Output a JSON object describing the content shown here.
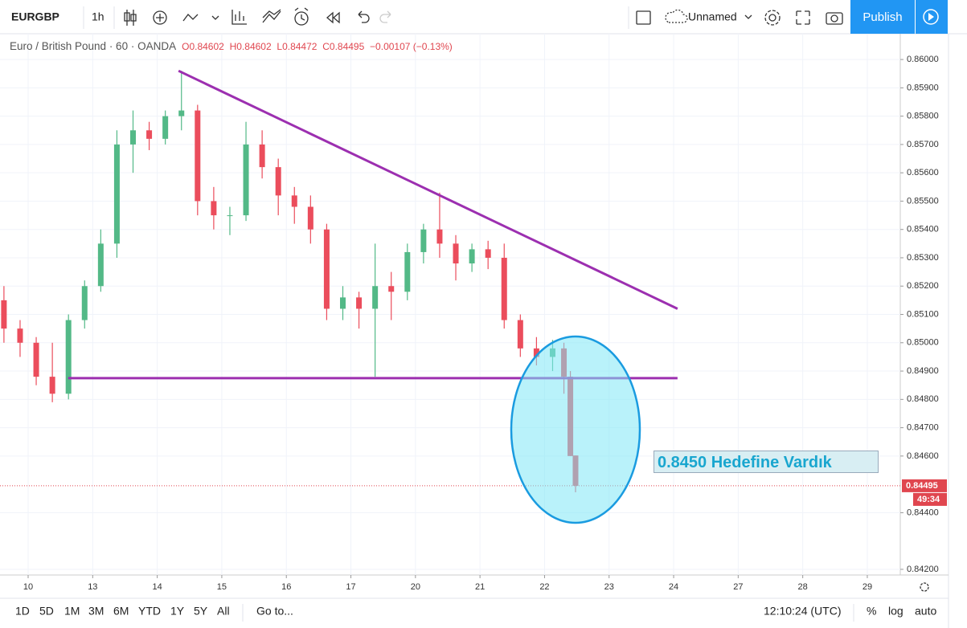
{
  "toolbar": {
    "symbol": "EURGBP",
    "interval": "1h",
    "layout": "Unnamed",
    "publish": "Publish"
  },
  "legend": {
    "title": "Euro / British Pound · 60 · OANDA",
    "open": "O0.84602",
    "high": "H0.84602",
    "low": "L0.84472",
    "close": "C0.84495",
    "change": "−0.00107 (−0.13%)"
  },
  "bottom_bar": {
    "ranges": [
      "1D",
      "5D",
      "1M",
      "3M",
      "6M",
      "YTD",
      "1Y",
      "5Y",
      "All"
    ],
    "goto": "Go to...",
    "clock": "12:10:24 (UTC)",
    "percent": "%",
    "log": "log",
    "auto": "auto"
  },
  "chart_data": {
    "type": "candlestick",
    "x": [
      -0.375,
      -0.125,
      0.125,
      0.375,
      0.625,
      0.875,
      1.125,
      1.375,
      1.625,
      1.875,
      2.125,
      2.375,
      2.625,
      2.875,
      3.125,
      3.375,
      3.625,
      3.875,
      4.125,
      4.375,
      4.625,
      4.875,
      5.125,
      5.375,
      5.625,
      5.875,
      6.125,
      6.375,
      6.625,
      6.875,
      7.125,
      7.375,
      7.625,
      7.875,
      8.125,
      8.3,
      8.4,
      8.48
    ],
    "open": [
      0.8515,
      0.8505,
      0.85,
      0.8488,
      0.8482,
      0.8508,
      0.852,
      0.8535,
      0.857,
      0.8575,
      0.8572,
      0.858,
      0.8582,
      0.855,
      0.8545,
      0.8545,
      0.857,
      0.8562,
      0.8552,
      0.8548,
      0.854,
      0.8512,
      0.8516,
      0.8512,
      0.852,
      0.8518,
      0.8532,
      0.854,
      0.8535,
      0.8528,
      0.8533,
      0.853,
      0.8508,
      0.8498,
      0.8495,
      0.8498,
      0.8488,
      0.84602
    ],
    "high": [
      0.852,
      0.8508,
      0.8502,
      0.85,
      0.851,
      0.8522,
      0.854,
      0.8575,
      0.8582,
      0.8578,
      0.8582,
      0.8596,
      0.8584,
      0.8555,
      0.8548,
      0.8578,
      0.8575,
      0.8565,
      0.8555,
      0.8552,
      0.8542,
      0.852,
      0.8518,
      0.8535,
      0.8525,
      0.8535,
      0.8542,
      0.8553,
      0.8538,
      0.8535,
      0.8536,
      0.8535,
      0.851,
      0.8502,
      0.8501,
      0.85,
      0.849,
      0.84602
    ],
    "low": [
      0.85,
      0.8495,
      0.8485,
      0.8479,
      0.848,
      0.8505,
      0.8518,
      0.853,
      0.856,
      0.8568,
      0.857,
      0.8575,
      0.8545,
      0.854,
      0.8538,
      0.8543,
      0.8558,
      0.8545,
      0.8542,
      0.8535,
      0.8508,
      0.8508,
      0.8505,
      0.8488,
      0.8508,
      0.8515,
      0.8528,
      0.853,
      0.8522,
      0.8525,
      0.8526,
      0.8505,
      0.8495,
      0.8492,
      0.849,
      0.8482,
      0.846,
      0.84472
    ],
    "close": [
      0.8505,
      0.85,
      0.8488,
      0.8482,
      0.8508,
      0.852,
      0.8535,
      0.857,
      0.8575,
      0.8572,
      0.858,
      0.8582,
      0.855,
      0.8545,
      0.8545,
      0.857,
      0.8562,
      0.8552,
      0.8548,
      0.854,
      0.8512,
      0.8516,
      0.8512,
      0.852,
      0.8518,
      0.8532,
      0.854,
      0.8535,
      0.8528,
      0.8533,
      0.853,
      0.8508,
      0.8498,
      0.8495,
      0.8498,
      0.8488,
      0.846,
      0.84495
    ],
    "up_color": "#53b987",
    "down_color": "#eb4d5c",
    "xlim": [
      -0.436,
      13.511
    ],
    "xticks": [
      {
        "value": 0,
        "label": "10"
      },
      {
        "value": 1,
        "label": "13"
      },
      {
        "value": 2,
        "label": "14"
      },
      {
        "value": 3,
        "label": "15"
      },
      {
        "value": 4,
        "label": "16"
      },
      {
        "value": 5,
        "label": "17"
      },
      {
        "value": 6,
        "label": "20"
      },
      {
        "value": 7,
        "label": "21"
      },
      {
        "value": 8,
        "label": "22"
      },
      {
        "value": 9,
        "label": "23"
      },
      {
        "value": 10,
        "label": "24"
      },
      {
        "value": 11,
        "label": "27"
      },
      {
        "value": 12,
        "label": "28"
      },
      {
        "value": 13,
        "label": "29"
      }
    ],
    "ylim": [
      0.8418,
      0.86091
    ],
    "yticks": [
      {
        "value": 0.842,
        "label": "0.84200"
      },
      {
        "value": 0.844,
        "label": "0.84400"
      },
      {
        "value": 0.846,
        "label": "0.84600"
      },
      {
        "value": 0.847,
        "label": "0.84700"
      },
      {
        "value": 0.848,
        "label": "0.84800"
      },
      {
        "value": 0.849,
        "label": "0.84900"
      },
      {
        "value": 0.85,
        "label": "0.85000"
      },
      {
        "value": 0.851,
        "label": "0.85100"
      },
      {
        "value": 0.852,
        "label": "0.85200"
      },
      {
        "value": 0.853,
        "label": "0.85300"
      },
      {
        "value": 0.854,
        "label": "0.85400"
      },
      {
        "value": 0.855,
        "label": "0.85500"
      },
      {
        "value": 0.856,
        "label": "0.85600"
      },
      {
        "value": 0.857,
        "label": "0.85700"
      },
      {
        "value": 0.858,
        "label": "0.85800"
      },
      {
        "value": 0.859,
        "label": "0.85900"
      },
      {
        "value": 0.86,
        "label": "0.86000"
      }
    ],
    "grid": true,
    "last_price": 0.84495,
    "countdown": "49:34",
    "last_price_color": "#e0464f",
    "trendlines": [
      {
        "x": [
          2.33,
          10.06
        ],
        "y": [
          0.8596,
          0.8512
        ],
        "color": "#9c2fb0"
      },
      {
        "x": [
          0.62,
          10.06
        ],
        "y": [
          0.84875,
          0.84875
        ],
        "color": "#9c2fb0"
      }
    ],
    "annotation": "0.8450 Hedefine Vardık"
  }
}
